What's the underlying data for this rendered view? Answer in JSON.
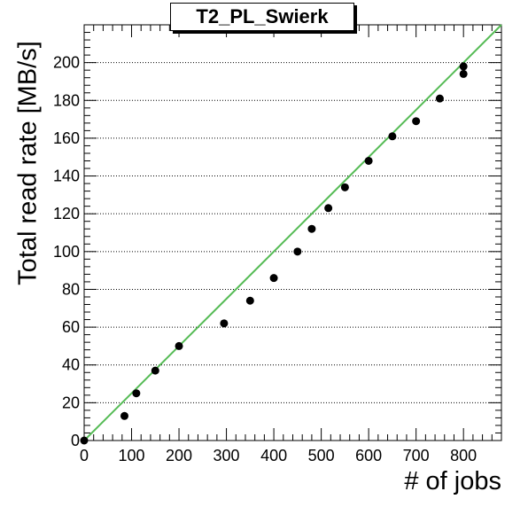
{
  "chart_data": {
    "type": "scatter",
    "title": "T2_PL_Swierk",
    "xlabel": "# of jobs",
    "ylabel": "Total read rate [MB/s]",
    "xlim": [
      0,
      880
    ],
    "ylim": [
      0,
      220
    ],
    "x_ticks": [
      0,
      100,
      200,
      300,
      400,
      500,
      600,
      700,
      800
    ],
    "y_ticks": [
      0,
      20,
      40,
      60,
      80,
      100,
      120,
      140,
      160,
      180,
      200
    ],
    "grid": "horizontal dotted",
    "series": [
      {
        "points": [
          {
            "x": 0,
            "y": 0
          },
          {
            "x": 85,
            "y": 13
          },
          {
            "x": 110,
            "y": 25
          },
          {
            "x": 150,
            "y": 37
          },
          {
            "x": 200,
            "y": 50
          },
          {
            "x": 295,
            "y": 62
          },
          {
            "x": 350,
            "y": 74
          },
          {
            "x": 400,
            "y": 86
          },
          {
            "x": 450,
            "y": 100
          },
          {
            "x": 480,
            "y": 112
          },
          {
            "x": 515,
            "y": 123
          },
          {
            "x": 550,
            "y": 134
          },
          {
            "x": 600,
            "y": 148
          },
          {
            "x": 650,
            "y": 161
          },
          {
            "x": 700,
            "y": 169
          },
          {
            "x": 750,
            "y": 181
          },
          {
            "x": 800,
            "y": 194
          },
          {
            "x": 800,
            "y": 198
          }
        ],
        "color": "#000000"
      }
    ],
    "fit_line": {
      "x": [
        0,
        880
      ],
      "y": [
        0,
        220
      ],
      "color": "#55bb55"
    }
  }
}
